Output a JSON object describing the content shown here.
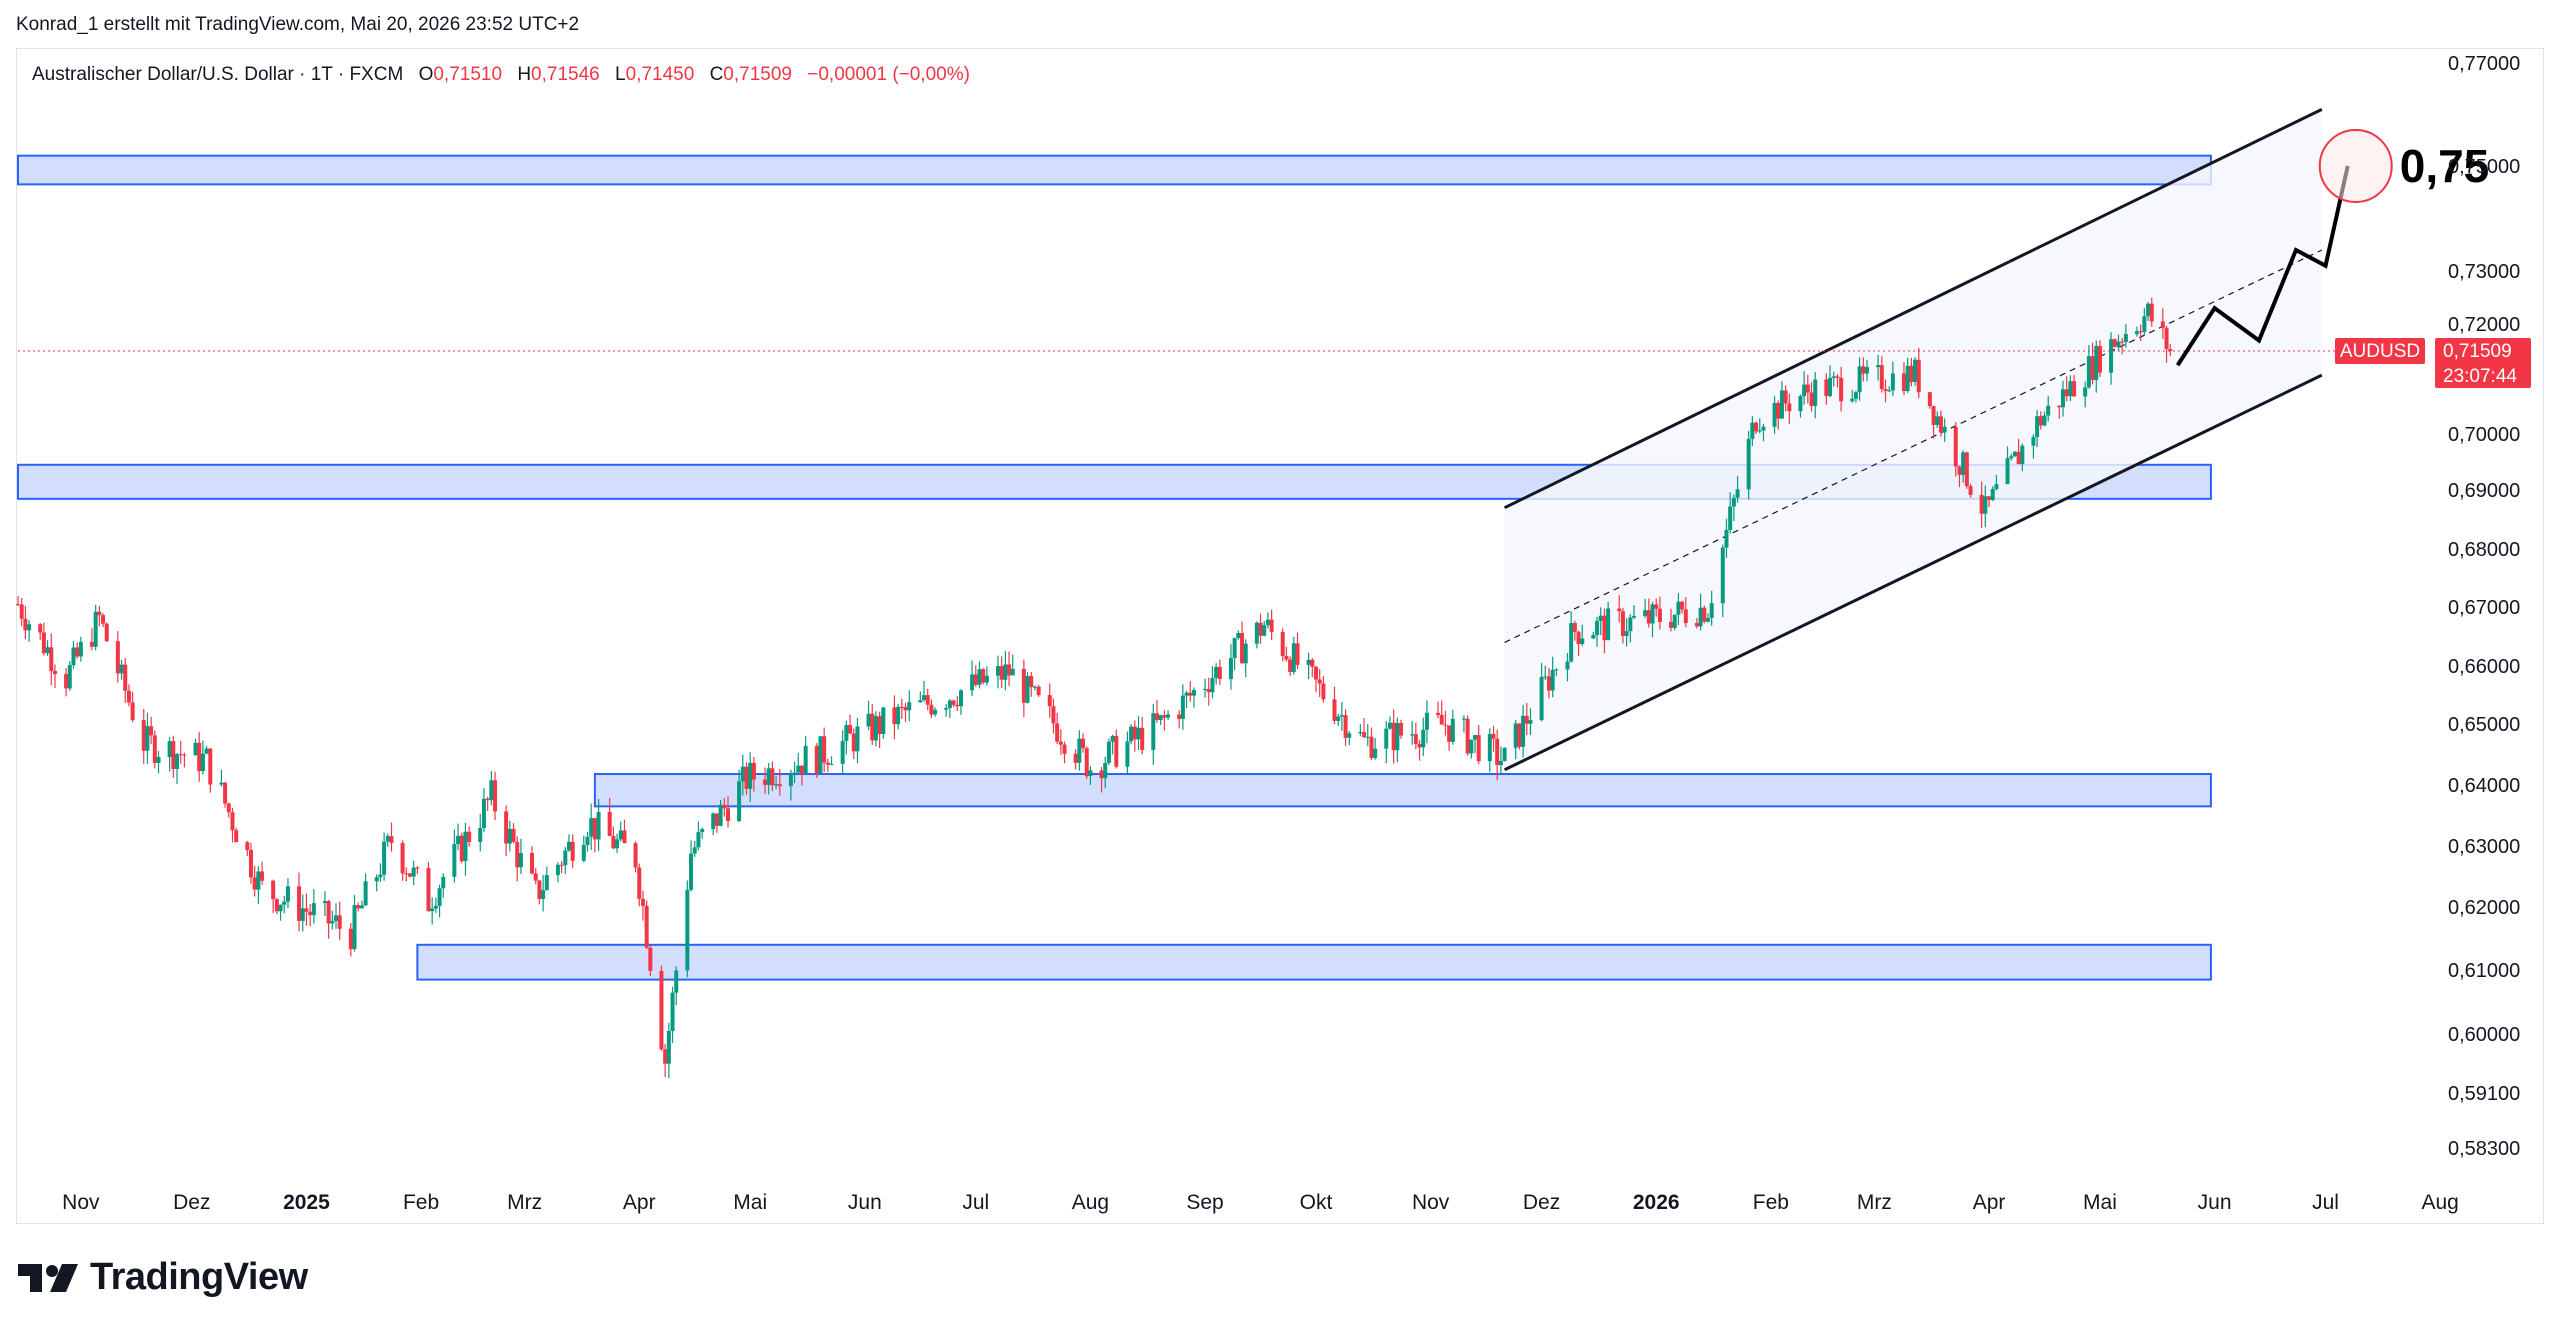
{
  "header": {
    "attribution": "Konrad_1 erstellt mit TradingView.com, Mai 20, 2026 23:52 UTC+2"
  },
  "legend": {
    "symbol_title": "Australischer Dollar/U.S. Dollar · 1T · FXCM",
    "o_label": "O",
    "o_value": "0,71510",
    "h_label": "H",
    "h_value": "0,71546",
    "l_label": "L",
    "l_value": "0,71450",
    "c_label": "C",
    "c_value": "0,71509",
    "change": "−0,00001 (−0,00%)"
  },
  "price_tag": {
    "symbol": "AUDUSD",
    "price": "0,71509",
    "countdown": "23:07:44",
    "color": "#f23645"
  },
  "annotation": {
    "target_label": "0,75"
  },
  "footer": {
    "brand": "TradingView"
  },
  "colors": {
    "up": "#089981",
    "down": "#f23645",
    "zone_fill": "#d1dcff",
    "zone_border": "#2962ff",
    "channel_fill": "#f4f6fd",
    "target_circle": "#f23645"
  },
  "chart_data": {
    "type": "candlestick",
    "symbol": "AUDUSD",
    "interval": "1T",
    "y_axis_ticks": [
      "0,77000",
      "0,75000",
      "0,73000",
      "0,72000",
      "0,70000",
      "0,69000",
      "0,68000",
      "0,67000",
      "0,66000",
      "0,65000",
      "0,64000",
      "0,63000",
      "0,62000",
      "0,61000",
      "0,60000",
      "0,59100",
      "0,58300"
    ],
    "x_axis_ticks": [
      "Nov",
      "Dez",
      "2025",
      "Feb",
      "Mrz",
      "Apr",
      "Mai",
      "Jun",
      "Jul",
      "Aug",
      "Sep",
      "Okt",
      "Nov",
      "Dez",
      "2026",
      "Feb",
      "Mrz",
      "Apr",
      "Mai",
      "Jun",
      "Jul",
      "Aug"
    ],
    "bold_x_ticks": [
      "2025",
      "2026"
    ],
    "x_range": [
      "2024-10-15",
      "2026-08-20"
    ],
    "price_path": [
      {
        "date": "2024-10-15",
        "close": 0.6705
      },
      {
        "date": "2024-10-28",
        "close": 0.658
      },
      {
        "date": "2024-11-06",
        "close": 0.668
      },
      {
        "date": "2024-11-18",
        "close": 0.647
      },
      {
        "date": "2024-12-05",
        "close": 0.644
      },
      {
        "date": "2024-12-20",
        "close": 0.623
      },
      {
        "date": "2025-01-13",
        "close": 0.616
      },
      {
        "date": "2025-01-24",
        "close": 0.631
      },
      {
        "date": "2025-02-03",
        "close": 0.621
      },
      {
        "date": "2025-02-20",
        "close": 0.638
      },
      {
        "date": "2025-03-04",
        "close": 0.622
      },
      {
        "date": "2025-03-18",
        "close": 0.634
      },
      {
        "date": "2025-03-31",
        "close": 0.628
      },
      {
        "date": "2025-04-08",
        "close": 0.596
      },
      {
        "date": "2025-04-15",
        "close": 0.629
      },
      {
        "date": "2025-04-30",
        "close": 0.641
      },
      {
        "date": "2025-05-20",
        "close": 0.645
      },
      {
        "date": "2025-06-12",
        "close": 0.652
      },
      {
        "date": "2025-07-10",
        "close": 0.659
      },
      {
        "date": "2025-08-01",
        "close": 0.643
      },
      {
        "date": "2025-08-20",
        "close": 0.65
      },
      {
        "date": "2025-09-17",
        "close": 0.667
      },
      {
        "date": "2025-10-14",
        "close": 0.647
      },
      {
        "date": "2025-11-05",
        "close": 0.65
      },
      {
        "date": "2025-11-21",
        "close": 0.644
      },
      {
        "date": "2025-12-10",
        "close": 0.666
      },
      {
        "date": "2025-12-31",
        "close": 0.668
      },
      {
        "date": "2026-01-15",
        "close": 0.67
      },
      {
        "date": "2026-01-28",
        "close": 0.703
      },
      {
        "date": "2026-02-12",
        "close": 0.708
      },
      {
        "date": "2026-03-12",
        "close": 0.711
      },
      {
        "date": "2026-03-31",
        "close": 0.686
      },
      {
        "date": "2026-04-14",
        "close": 0.702
      },
      {
        "date": "2026-05-05",
        "close": 0.717
      },
      {
        "date": "2026-05-14",
        "close": 0.722
      },
      {
        "date": "2026-05-20",
        "close": 0.71509
      }
    ],
    "support_resistance_zones": [
      {
        "from": "2024-10-15",
        "to": "2026-05-31",
        "low": 0.7465,
        "high": 0.752
      },
      {
        "from": "2024-10-15",
        "to": "2026-05-31",
        "low": 0.6885,
        "high": 0.6945
      },
      {
        "from": "2025-03-20",
        "to": "2026-05-31",
        "low": 0.6365,
        "high": 0.6418
      },
      {
        "from": "2025-01-31",
        "to": "2026-05-31",
        "low": 0.6085,
        "high": 0.614
      }
    ],
    "ascending_channel": {
      "upper": [
        {
          "date": "2025-11-21",
          "price": 0.687
        },
        {
          "date": "2026-06-30",
          "price": 0.761
        }
      ],
      "middle": [
        {
          "date": "2025-11-21",
          "price": 0.664
        },
        {
          "date": "2026-06-30",
          "price": 0.734
        }
      ],
      "lower": [
        {
          "date": "2025-11-21",
          "price": 0.6425
        },
        {
          "date": "2026-06-30",
          "price": 0.7107
        }
      ]
    },
    "projection_path": [
      {
        "date": "2026-05-22",
        "price": 0.7125
      },
      {
        "date": "2026-06-01",
        "price": 0.723
      },
      {
        "date": "2026-06-13",
        "price": 0.717
      },
      {
        "date": "2026-06-23",
        "price": 0.734
      },
      {
        "date": "2026-06-31",
        "price": 0.731
      },
      {
        "date": "2026-07-07",
        "price": 0.75
      }
    ],
    "target": {
      "date": "2026-07-07",
      "price": 0.75
    },
    "current_price": 0.71509
  }
}
